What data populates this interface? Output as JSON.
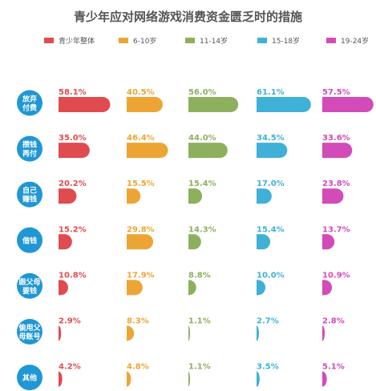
{
  "chart_data": {
    "type": "bar",
    "title": "青少年应对网络游戏消费资金匮乏时的措施",
    "unit": "%",
    "legend_position": "top",
    "grid": false,
    "xlim": [
      0,
      100
    ],
    "categories": [
      [
        "放弃",
        "付费"
      ],
      [
        "攒钱",
        "再付"
      ],
      [
        "自己",
        "赚钱"
      ],
      [
        "借钱"
      ],
      [
        "跟父母",
        "要钱"
      ],
      [
        "偷用父",
        "母账号"
      ],
      [
        "其他"
      ]
    ],
    "category_color": "#1f97d4",
    "series": [
      {
        "name": "青少年整体",
        "color": "#e04b4f",
        "values": [
          58.1,
          35.0,
          20.2,
          15.2,
          10.8,
          2.9,
          4.2
        ]
      },
      {
        "name": "6-10岁",
        "color": "#eca535",
        "values": [
          40.5,
          46.4,
          15.5,
          29.8,
          17.9,
          8.3,
          4.8
        ]
      },
      {
        "name": "11-14岁",
        "color": "#8db05e",
        "values": [
          56.0,
          44.0,
          15.4,
          14.3,
          8.8,
          1.1,
          1.1
        ]
      },
      {
        "name": "15-18岁",
        "color": "#3fb1d6",
        "values": [
          61.1,
          34.5,
          17.0,
          15.4,
          10.0,
          2.7,
          3.5
        ]
      },
      {
        "name": "19-24岁",
        "color": "#d34bb8",
        "values": [
          57.5,
          33.6,
          23.8,
          13.7,
          10.9,
          2.8,
          5.1
        ]
      }
    ]
  }
}
